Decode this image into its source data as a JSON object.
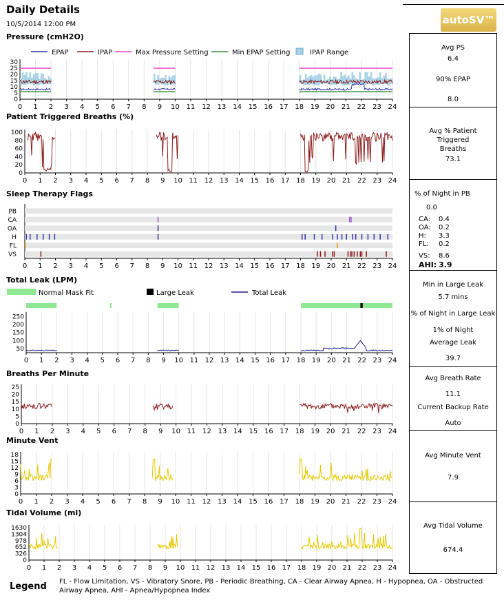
{
  "header": {
    "title": "Daily Details",
    "date": "10/5/2014 12:00 PM",
    "logo": "autoSV™"
  },
  "hours": [
    "0",
    "1",
    "2",
    "3",
    "4",
    "5",
    "6",
    "7",
    "8",
    "9",
    "10",
    "11",
    "12",
    "13",
    "14",
    "15",
    "16",
    "17",
    "18",
    "19",
    "20",
    "21",
    "22",
    "23",
    "24"
  ],
  "pressure": {
    "title": "Pressure (cmH2O)",
    "legend": [
      {
        "label": "EPAP",
        "color": "#3333aa",
        "kind": "line"
      },
      {
        "label": "IPAP",
        "color": "#8b1a1a",
        "kind": "line"
      },
      {
        "label": "Max Pressure Setting",
        "color": "#ee44cc",
        "kind": "line"
      },
      {
        "label": "Min EPAP Setting",
        "color": "#2e8b3c",
        "kind": "line"
      },
      {
        "label": "IPAP Range",
        "color": "#a8d3e6",
        "kind": "box"
      }
    ],
    "yticks": [
      "0",
      "5",
      "10",
      "15",
      "20",
      "25",
      "30"
    ],
    "ylim": [
      0,
      30
    ],
    "segments": [
      [
        0,
        2
      ],
      [
        8.6,
        10
      ],
      [
        18,
        24
      ]
    ],
    "max_setting": 25,
    "min_epap": 6,
    "epap_avg": 8,
    "ipap_avg": 14.5
  },
  "triggered": {
    "title": "Patient Triggered Breaths (%)",
    "yticks": [
      "0",
      "20",
      "40",
      "60",
      "80",
      "100"
    ],
    "ylim": [
      0,
      100
    ],
    "segments": [
      [
        0.2,
        2
      ],
      [
        8.6,
        10
      ],
      [
        18,
        24
      ]
    ],
    "color": "#8b1a1a"
  },
  "flags": {
    "title": "Sleep Therapy Flags",
    "rows": [
      "PB",
      "CA",
      "OA",
      "H",
      "FL",
      "VS"
    ],
    "events": [
      {
        "row": "CA",
        "color": "#a050c8",
        "times": [
          8.7,
          21.2,
          21.3
        ]
      },
      {
        "row": "OA",
        "color": "#3333aa",
        "times": [
          8.7,
          20.3
        ]
      },
      {
        "row": "H",
        "color": "#3333aa",
        "times": [
          0.1,
          0.35,
          0.8,
          1.2,
          1.6,
          1.95,
          8.7,
          18.1,
          18.3,
          18.9,
          19.4,
          20.1,
          20.4,
          20.7,
          21.0,
          21.4,
          21.6,
          22.0,
          22.4,
          22.8,
          23.2,
          23.7
        ]
      },
      {
        "row": "FL",
        "color": "#ee9900",
        "times": [
          0.05,
          20.4
        ]
      },
      {
        "row": "VS",
        "color": "#8b1a1a",
        "times": [
          1.05,
          19.1,
          19.3,
          19.6,
          20.1,
          20.2,
          21.1,
          21.25,
          21.35,
          21.5,
          21.7,
          21.9,
          22.0,
          22.3,
          23.6
        ]
      }
    ]
  },
  "leak": {
    "title": "Total Leak (LPM)",
    "legend": [
      {
        "label": "Normal Mask Fit",
        "color": "#90e890",
        "kind": "box"
      },
      {
        "label": "Large Leak",
        "color": "#000000",
        "kind": "box"
      },
      {
        "label": "Total Leak",
        "color": "#1a1a80",
        "kind": "line"
      }
    ],
    "yticks": [
      "50",
      "100",
      "150",
      "200",
      "250"
    ],
    "ylim": [
      25,
      260
    ],
    "fit_bars": [
      [
        0,
        2
      ],
      [
        5.5,
        5.6
      ],
      [
        8.6,
        10
      ],
      [
        18,
        24
      ]
    ],
    "large_leak_bars": [
      [
        21.9,
        22.05
      ]
    ],
    "segments": [
      [
        0,
        2
      ],
      [
        8.6,
        10
      ],
      [
        18,
        24
      ]
    ],
    "color": "#1a1a80",
    "peak": {
      "x": 21.9,
      "y": 100
    }
  },
  "bpm": {
    "title": "Breaths Per Minute",
    "yticks": [
      "0",
      "5",
      "10",
      "15",
      "20",
      "25"
    ],
    "ylim": [
      0,
      25
    ],
    "segments": [
      [
        0,
        2
      ],
      [
        8.5,
        9.8
      ],
      [
        18,
        24
      ]
    ],
    "color": "#8b1a1a"
  },
  "minvent": {
    "title": "Minute Vent",
    "yticks": [
      "0",
      "3",
      "6",
      "9",
      "12",
      "15",
      "18"
    ],
    "ylim": [
      0,
      18
    ],
    "segments": [
      [
        0,
        2
      ],
      [
        8.5,
        9.8
      ],
      [
        18,
        24
      ]
    ],
    "color": "#e8c800"
  },
  "tidal": {
    "title": "Tidal Volume (ml)",
    "yticks": [
      "0",
      "326",
      "652",
      "978",
      "1304",
      "1630"
    ],
    "ylim": [
      0,
      1630
    ],
    "segments": [
      [
        0,
        1.9
      ],
      [
        8.5,
        9.8
      ],
      [
        18,
        24
      ]
    ],
    "color": "#e8c800"
  },
  "stats": {
    "pressure": {
      "avg_ps_label": "Avg PS",
      "avg_ps": "6.4",
      "epap90_label": "90% EPAP",
      "epap90": "8.0"
    },
    "triggered": {
      "label": "Avg % Patient Triggered Breaths",
      "value": "73.1"
    },
    "flags": {
      "pb_label": "% of Night in PB",
      "pb": "0.0",
      "ca_label": "CA:",
      "ca": "0.4",
      "oa_label": "OA:",
      "oa": "0.2",
      "h_label": "H:",
      "h": "3.3",
      "fl_label": "FL:",
      "fl": "0.2",
      "vs_label": "VS:",
      "vs": "8.6",
      "ahi_label": "AHI:",
      "ahi": "3.9"
    },
    "leak": {
      "min_label": "Min in Large Leak",
      "min": "5.7 mins",
      "pct_label": "% of Night in Large Leak",
      "pct": "1% of Night",
      "avg_label": "Average Leak",
      "avg": "39.7"
    },
    "bpm": {
      "label": "Avg Breath Rate",
      "value": "11.1",
      "backup_label": "Current Backup Rate",
      "backup": "Auto"
    },
    "minvent": {
      "label": "Avg Minute Vent",
      "value": "7.9"
    },
    "tidal": {
      "label": "Avg Tidal Volume",
      "value": "674.4"
    }
  },
  "legend": {
    "title": "Legend",
    "text": "FL - Flow Limitation, VS - Vibratory Snore, PB - Periodic Breathing, CA - Clear Airway Apnea, H - Hypopnea, OA - Obstructed Airway Apnea, AHI - Apnea/Hypopnea Index"
  }
}
